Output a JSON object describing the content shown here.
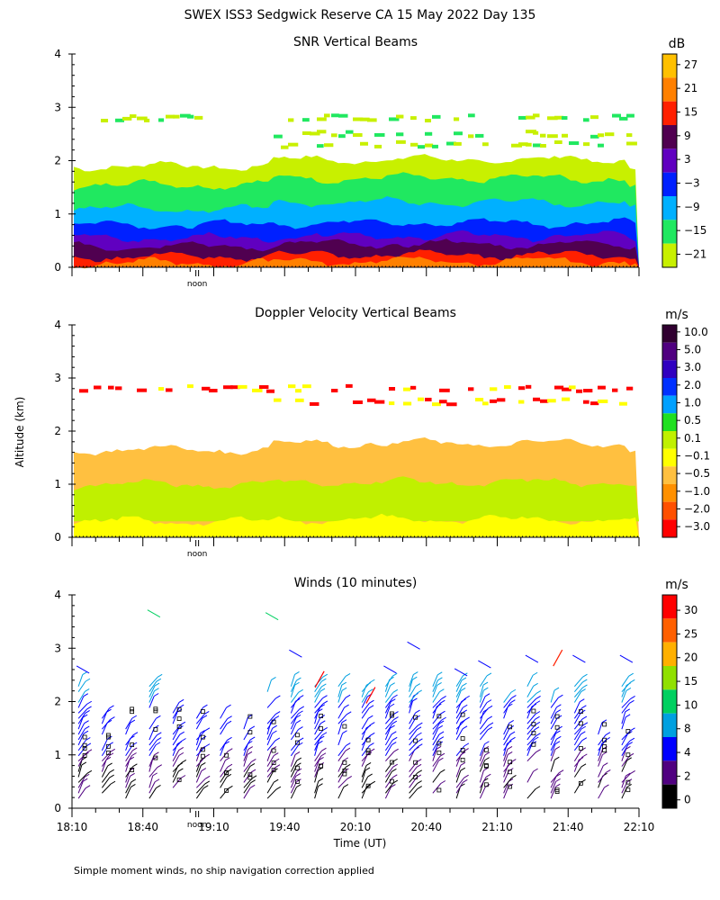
{
  "figure": {
    "title": "SWEX ISS3 Sedgwick Reserve CA  15 May 2022 Day 135",
    "shared_ylabel": "Altitude (km)",
    "xlabel": "Time (UT)",
    "footnote": "Simple moment winds, no ship navigation correction applied",
    "noon_label": "noon"
  },
  "chart_data": [
    {
      "type": "heatmap",
      "title": "SNR Vertical Beams",
      "units": "dB",
      "y_ticks": [
        "0",
        "1",
        "2",
        "3",
        "4"
      ],
      "ylim": [
        0,
        4
      ],
      "xlim_hours": [
        18.1667,
        22.1667
      ],
      "colorbar": {
        "labels": [
          "27",
          "21",
          "15",
          "9",
          "3",
          "−3",
          "−9",
          "−15",
          "−21"
        ],
        "colors": [
          "#ffc000",
          "#ff8000",
          "#ff2000",
          "#500050",
          "#6000c0",
          "#0020ff",
          "#00b0ff",
          "#20e860",
          "#c8f000"
        ]
      },
      "layers": [
        {
          "label": "−21",
          "from_km": 0.0,
          "to_km": 1.9
        },
        {
          "label": "−15",
          "from_km": 0.0,
          "to_km": 1.55
        },
        {
          "label": "−9",
          "from_km": 0.0,
          "to_km": 1.1
        },
        {
          "label": "−3",
          "from_km": 0.0,
          "to_km": 0.8
        },
        {
          "label": "3",
          "from_km": 0.0,
          "to_km": 0.55
        },
        {
          "label": "9",
          "from_km": 0.0,
          "to_km": 0.4
        },
        {
          "label": "15",
          "from_km": 0.0,
          "to_km": 0.2
        },
        {
          "label": "21",
          "from_km": 0.0,
          "to_km": 0.08
        }
      ],
      "upper_layers_km": [
        2.8,
        2.5,
        2.3
      ]
    },
    {
      "type": "heatmap",
      "title": "Doppler Velocity Vertical Beams",
      "units": "m/s",
      "y_ticks": [
        "0",
        "1",
        "2",
        "3",
        "4"
      ],
      "ylim": [
        0,
        4
      ],
      "xlim_hours": [
        18.1667,
        22.1667
      ],
      "colorbar": {
        "labels": [
          "10.0",
          "5.0",
          "3.0",
          "2.0",
          "1.0",
          "0.5",
          "0.1",
          "−0.1",
          "−0.5",
          "−1.0",
          "−2.0",
          "−3.0"
        ],
        "colors": [
          "#300030",
          "#500080",
          "#3000c0",
          "#0030ff",
          "#00a0ff",
          "#20e020",
          "#c0f000",
          "#ffff00",
          "#ffc040",
          "#ff9000",
          "#ff5000",
          "#ff0000"
        ]
      },
      "layers": [
        {
          "label": "−0.5",
          "from_km": 0.0,
          "to_km": 1.65
        },
        {
          "label": "0.1",
          "from_km": 0.3,
          "to_km": 1.0
        },
        {
          "label": "−0.1",
          "from_km": 0.0,
          "to_km": 0.3
        }
      ],
      "upper_layers_km": [
        2.8,
        2.55
      ]
    },
    {
      "type": "barbs",
      "title": "Winds (10 minutes)",
      "units": "m/s",
      "y_ticks": [
        "0",
        "1",
        "2",
        "3",
        "4"
      ],
      "ylim": [
        0,
        4
      ],
      "x_ticks": [
        "18:10",
        "18:40",
        "19:10",
        "19:40",
        "20:10",
        "20:40",
        "21:10",
        "21:40",
        "22:10"
      ],
      "x_tick_hours": [
        18.1667,
        18.6667,
        19.1667,
        19.6667,
        20.1667,
        20.6667,
        21.1667,
        21.6667,
        22.1667
      ],
      "xlim_hours": [
        18.1667,
        22.1667
      ],
      "colorbar": {
        "labels": [
          "30",
          "25",
          "20",
          "15",
          "10",
          "8",
          "4",
          "2",
          "0"
        ],
        "colors": [
          "#ff0000",
          "#ff6000",
          "#ffb000",
          "#90e000",
          "#00d060",
          "#00a0e0",
          "#0000ff",
          "#500080",
          "#000000"
        ]
      },
      "profile_times_hours": [
        18.25,
        18.4167,
        18.5833,
        18.75,
        18.9167,
        19.0833,
        19.25,
        19.4167,
        19.5833,
        19.75,
        19.9167,
        20.0833,
        20.25,
        20.4167,
        20.5833,
        20.75,
        20.9167,
        21.0833,
        21.25,
        21.4167,
        21.5833,
        21.75,
        21.9167,
        22.0833
      ],
      "barb_top_km": [
        2.6,
        1.8,
        1.6,
        3.65,
        1.9,
        1.85,
        1.85,
        1.6,
        3.6,
        2.9,
        2.4,
        2.4,
        2.3,
        2.6,
        3.05,
        2.4,
        2.55,
        2.7,
        2.1,
        2.8,
        2.1,
        2.8,
        1.55,
        2.8
      ]
    }
  ]
}
